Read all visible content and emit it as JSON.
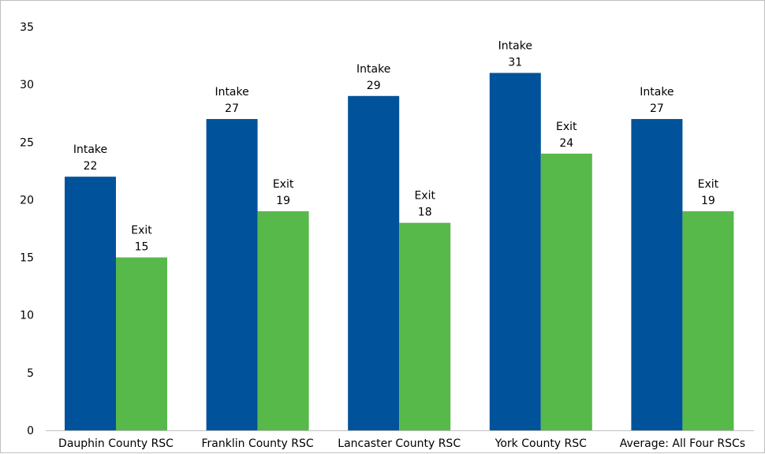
{
  "chart_data": {
    "type": "bar",
    "categories": [
      "Dauphin County RSC",
      "Franklin County RSC",
      "Lancaster County RSC",
      "York County RSC",
      "Average: All Four RSCs"
    ],
    "series": [
      {
        "name": "Intake",
        "values": [
          22,
          27,
          29,
          31,
          27
        ],
        "color": "#00529b"
      },
      {
        "name": "Exit",
        "values": [
          15,
          19,
          18,
          24,
          19
        ],
        "color": "#57b94a"
      }
    ],
    "title": "",
    "xlabel": "",
    "ylabel": "",
    "ylim": [
      0,
      35
    ],
    "yticks": [
      0,
      5,
      10,
      15,
      20,
      25,
      30,
      35
    ],
    "grid": false,
    "legend": "none"
  }
}
